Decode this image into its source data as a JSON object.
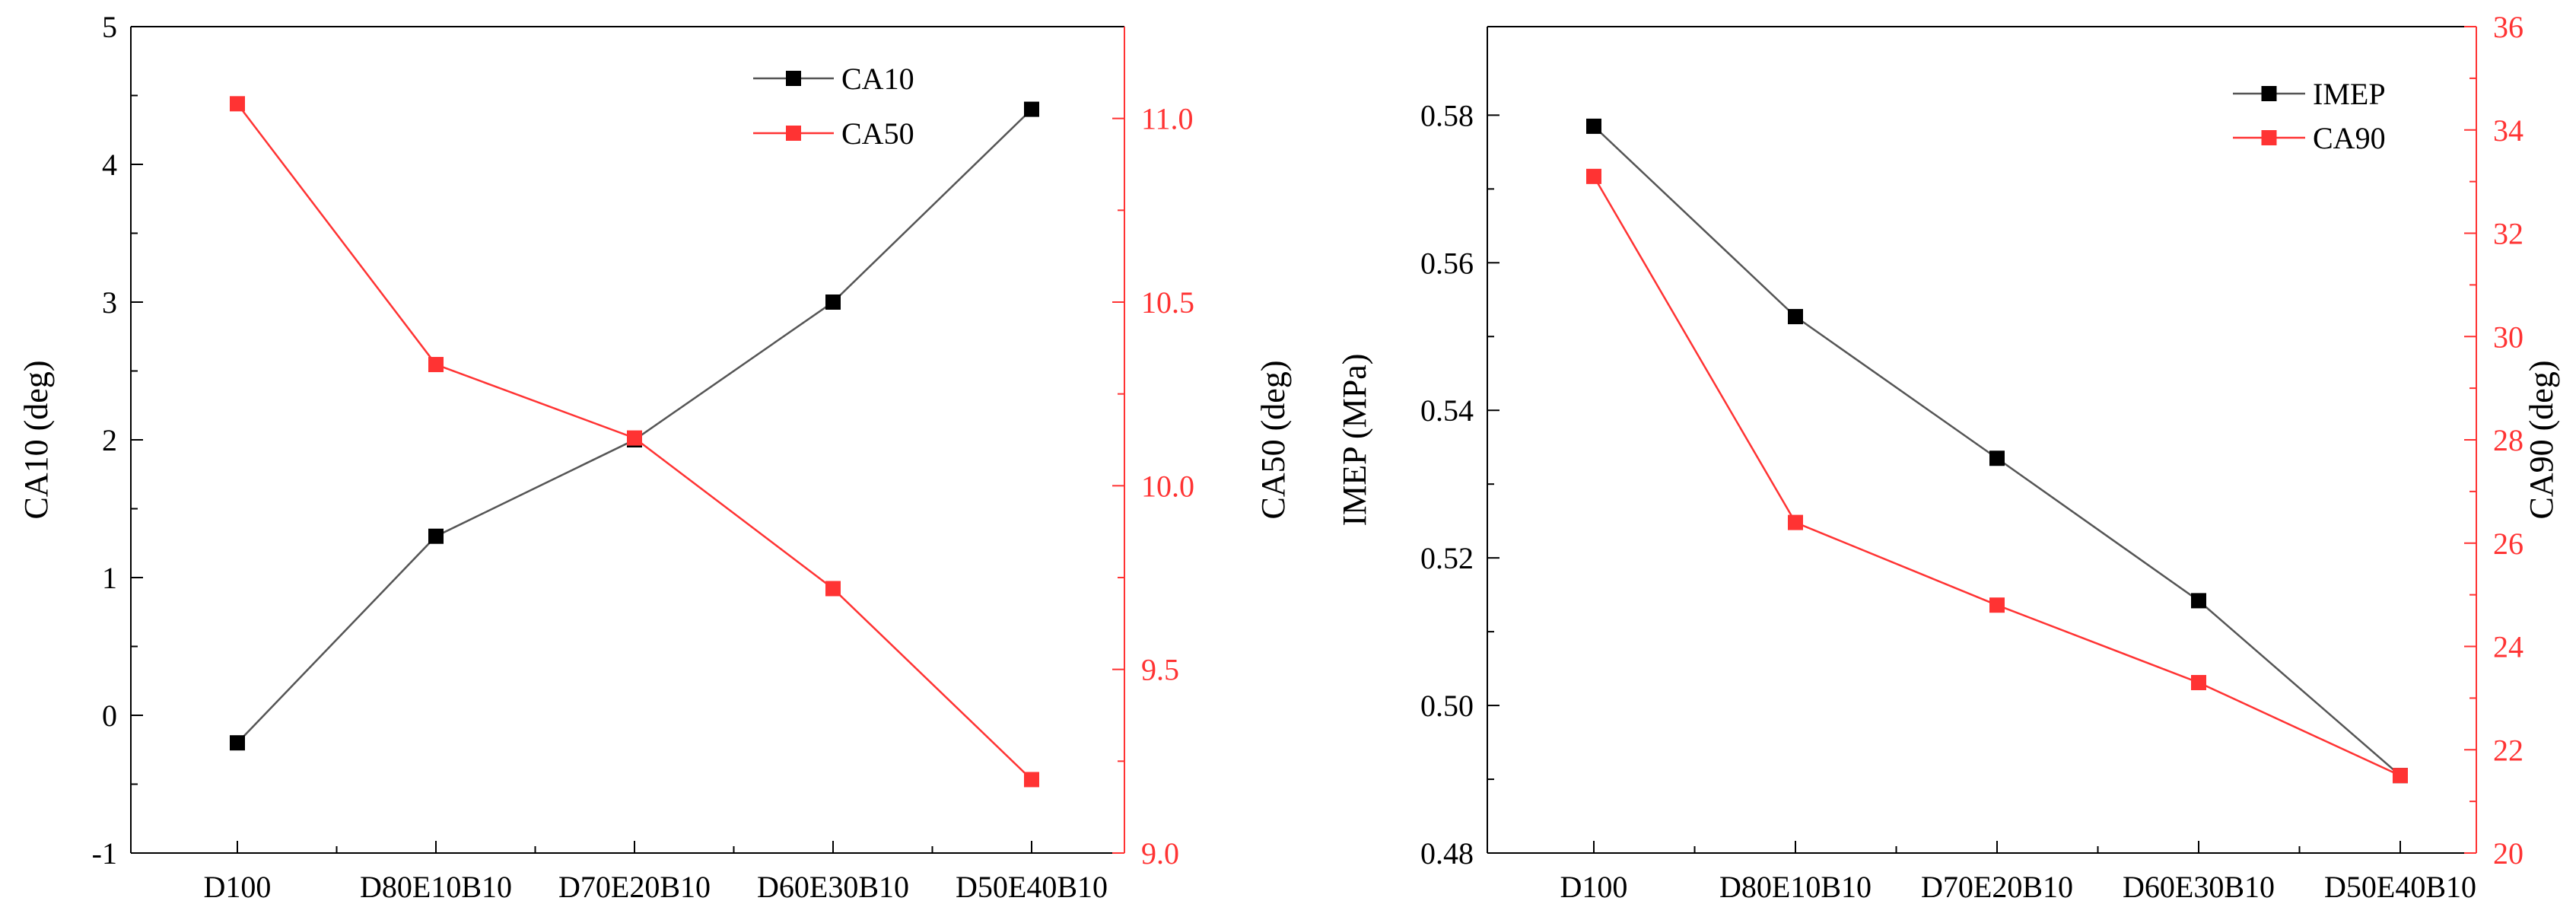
{
  "chart_data": [
    {
      "type": "line",
      "categories": [
        "D100",
        "D80E10B10",
        "D70E20B10",
        "D60E30B10",
        "D50E40B10"
      ],
      "ylabel": "CA10 (deg)",
      "y2label": "CA50 (deg)",
      "ylim": [
        -1,
        5
      ],
      "y2lim": [
        9.0,
        11.25
      ],
      "yticks": [
        "-1",
        "0",
        "1",
        "2",
        "3",
        "4",
        "5"
      ],
      "y2ticks": [
        "9.0",
        "9.5",
        "10.0",
        "10.5",
        "11.0"
      ],
      "legend_position": "top-right",
      "grid": false,
      "series": [
        {
          "name": "CA10",
          "axis": "left",
          "color": "#000000",
          "values": [
            -0.2,
            1.3,
            2.0,
            3.0,
            4.4
          ]
        },
        {
          "name": "CA50",
          "axis": "right",
          "color": "#ff3333",
          "values": [
            11.04,
            10.33,
            10.13,
            9.72,
            9.2
          ]
        }
      ]
    },
    {
      "type": "line",
      "categories": [
        "D100",
        "D80E10B10",
        "D70E20B10",
        "D60E30B10",
        "D50E40B10"
      ],
      "ylabel": "IMEP (MPa)",
      "y2label": "CA90 (deg)",
      "ylim": [
        0.48,
        0.592
      ],
      "y2lim": [
        20,
        36
      ],
      "yticks": [
        "0.48",
        "0.50",
        "0.52",
        "0.54",
        "0.56",
        "0.58"
      ],
      "y2ticks": [
        "20",
        "22",
        "24",
        "26",
        "28",
        "30",
        "32",
        "34",
        "36"
      ],
      "legend_position": "top-right",
      "grid": false,
      "series": [
        {
          "name": "IMEP",
          "axis": "left",
          "color": "#000000",
          "values": [
            0.5785,
            0.5527,
            0.5335,
            0.5142,
            0.4905
          ]
        },
        {
          "name": "CA90",
          "axis": "right",
          "color": "#ff3333",
          "values": [
            33.1,
            26.4,
            24.8,
            23.3,
            21.5
          ]
        }
      ]
    }
  ]
}
